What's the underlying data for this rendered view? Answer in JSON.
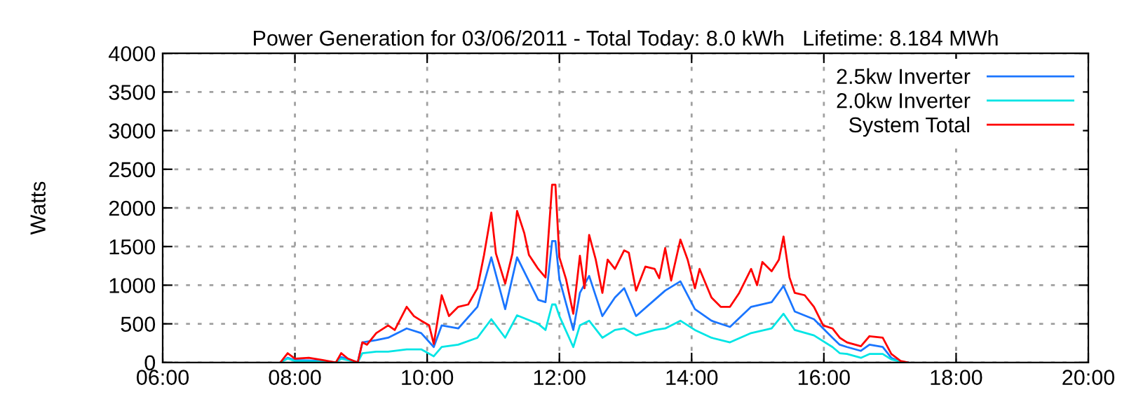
{
  "chart_data": {
    "type": "line",
    "title": "Power Generation for 03/06/2011 - Total Today: 8.0 kWh   Lifetime: 8.184 MWh",
    "ylabel": "Watts",
    "xlim": [
      6,
      20
    ],
    "xticks": [
      {
        "value": 6,
        "label": "06:00"
      },
      {
        "value": 8,
        "label": "08:00"
      },
      {
        "value": 10,
        "label": "10:00"
      },
      {
        "value": 12,
        "label": "12:00"
      },
      {
        "value": 14,
        "label": "14:00"
      },
      {
        "value": 16,
        "label": "16:00"
      },
      {
        "value": 18,
        "label": "18:00"
      },
      {
        "value": 20,
        "label": "20:00"
      }
    ],
    "ylim": [
      0,
      4000
    ],
    "yticks": [
      0,
      500,
      1000,
      1500,
      2000,
      2500,
      3000,
      3500,
      4000
    ],
    "grid": true,
    "legend": "top right",
    "line_style": "solid",
    "series": [
      {
        "name": "2.5kw Inverter",
        "color": "#1a75ff",
        "x": [
          7.78,
          7.89,
          8.0,
          8.42,
          8.62,
          8.7,
          8.95,
          9.02,
          9.23,
          9.41,
          9.69,
          9.91,
          10.1,
          10.22,
          10.47,
          10.76,
          10.97,
          11.18,
          11.36,
          11.68,
          11.79,
          11.89,
          11.94,
          12.0,
          12.21,
          12.31,
          12.45,
          12.65,
          12.84,
          12.98,
          13.16,
          13.44,
          13.6,
          13.83,
          14.05,
          14.3,
          14.58,
          14.9,
          15.21,
          15.39,
          15.56,
          15.85,
          16.13,
          16.24,
          16.35,
          16.56,
          16.69,
          16.89,
          17.02,
          17.16,
          17.27
        ],
        "values": [
          0,
          60,
          30,
          20,
          0,
          70,
          0,
          260,
          290,
          320,
          440,
          380,
          200,
          480,
          440,
          720,
          1360,
          690,
          1360,
          810,
          780,
          1570,
          1570,
          1080,
          420,
          900,
          1120,
          600,
          840,
          960,
          600,
          810,
          930,
          1050,
          690,
          540,
          460,
          720,
          780,
          990,
          660,
          560,
          320,
          230,
          200,
          150,
          230,
          200,
          60,
          10,
          0
        ]
      },
      {
        "name": "2.0kw Inverter",
        "color": "#00e5e5",
        "x": [
          7.78,
          7.89,
          8.0,
          8.42,
          8.62,
          8.7,
          8.95,
          9.02,
          9.23,
          9.41,
          9.69,
          9.91,
          10.1,
          10.22,
          10.47,
          10.76,
          10.97,
          11.18,
          11.36,
          11.68,
          11.79,
          11.89,
          11.94,
          12.0,
          12.21,
          12.31,
          12.45,
          12.65,
          12.84,
          12.98,
          13.16,
          13.44,
          13.6,
          13.83,
          14.05,
          14.3,
          14.58,
          14.9,
          15.21,
          15.39,
          15.56,
          15.85,
          16.13,
          16.24,
          16.35,
          16.56,
          16.69,
          16.89,
          17.02,
          17.16,
          17.27
        ],
        "values": [
          0,
          50,
          20,
          10,
          0,
          50,
          0,
          120,
          140,
          140,
          170,
          170,
          80,
          200,
          230,
          320,
          560,
          320,
          610,
          500,
          420,
          750,
          750,
          600,
          200,
          480,
          540,
          320,
          420,
          440,
          350,
          420,
          440,
          540,
          420,
          320,
          260,
          380,
          440,
          630,
          420,
          350,
          200,
          120,
          110,
          60,
          110,
          110,
          40,
          10,
          0
        ]
      },
      {
        "name": "System Total",
        "color": "#ff0000",
        "x": [
          7.78,
          7.89,
          8.0,
          8.21,
          8.42,
          8.62,
          8.7,
          8.8,
          8.95,
          9.02,
          9.09,
          9.23,
          9.41,
          9.51,
          9.69,
          9.8,
          9.91,
          10.03,
          10.1,
          10.22,
          10.33,
          10.47,
          10.62,
          10.76,
          10.86,
          10.97,
          11.04,
          11.18,
          11.29,
          11.36,
          11.47,
          11.54,
          11.68,
          11.79,
          11.89,
          11.94,
          12.0,
          12.1,
          12.21,
          12.31,
          12.38,
          12.45,
          12.55,
          12.65,
          12.73,
          12.84,
          12.98,
          13.05,
          13.16,
          13.3,
          13.44,
          13.51,
          13.6,
          13.69,
          13.83,
          13.94,
          14.05,
          14.12,
          14.3,
          14.44,
          14.58,
          14.72,
          14.9,
          14.99,
          15.07,
          15.21,
          15.32,
          15.39,
          15.48,
          15.56,
          15.71,
          15.85,
          15.99,
          16.13,
          16.24,
          16.35,
          16.56,
          16.69,
          16.89,
          17.02,
          17.16,
          17.27
        ],
        "values": [
          0,
          120,
          50,
          60,
          30,
          0,
          120,
          50,
          0,
          260,
          230,
          380,
          480,
          420,
          720,
          600,
          540,
          480,
          240,
          870,
          600,
          720,
          750,
          960,
          1390,
          1940,
          1410,
          1020,
          1410,
          1960,
          1670,
          1390,
          1210,
          1100,
          2300,
          2300,
          1360,
          1080,
          630,
          1380,
          960,
          1650,
          1330,
          900,
          1330,
          1210,
          1450,
          1420,
          930,
          1240,
          1210,
          1090,
          1480,
          1060,
          1590,
          1330,
          960,
          1210,
          840,
          720,
          720,
          900,
          1210,
          1000,
          1300,
          1180,
          1330,
          1630,
          1100,
          900,
          870,
          720,
          480,
          440,
          320,
          260,
          210,
          340,
          320,
          110,
          20,
          0
        ]
      }
    ]
  }
}
